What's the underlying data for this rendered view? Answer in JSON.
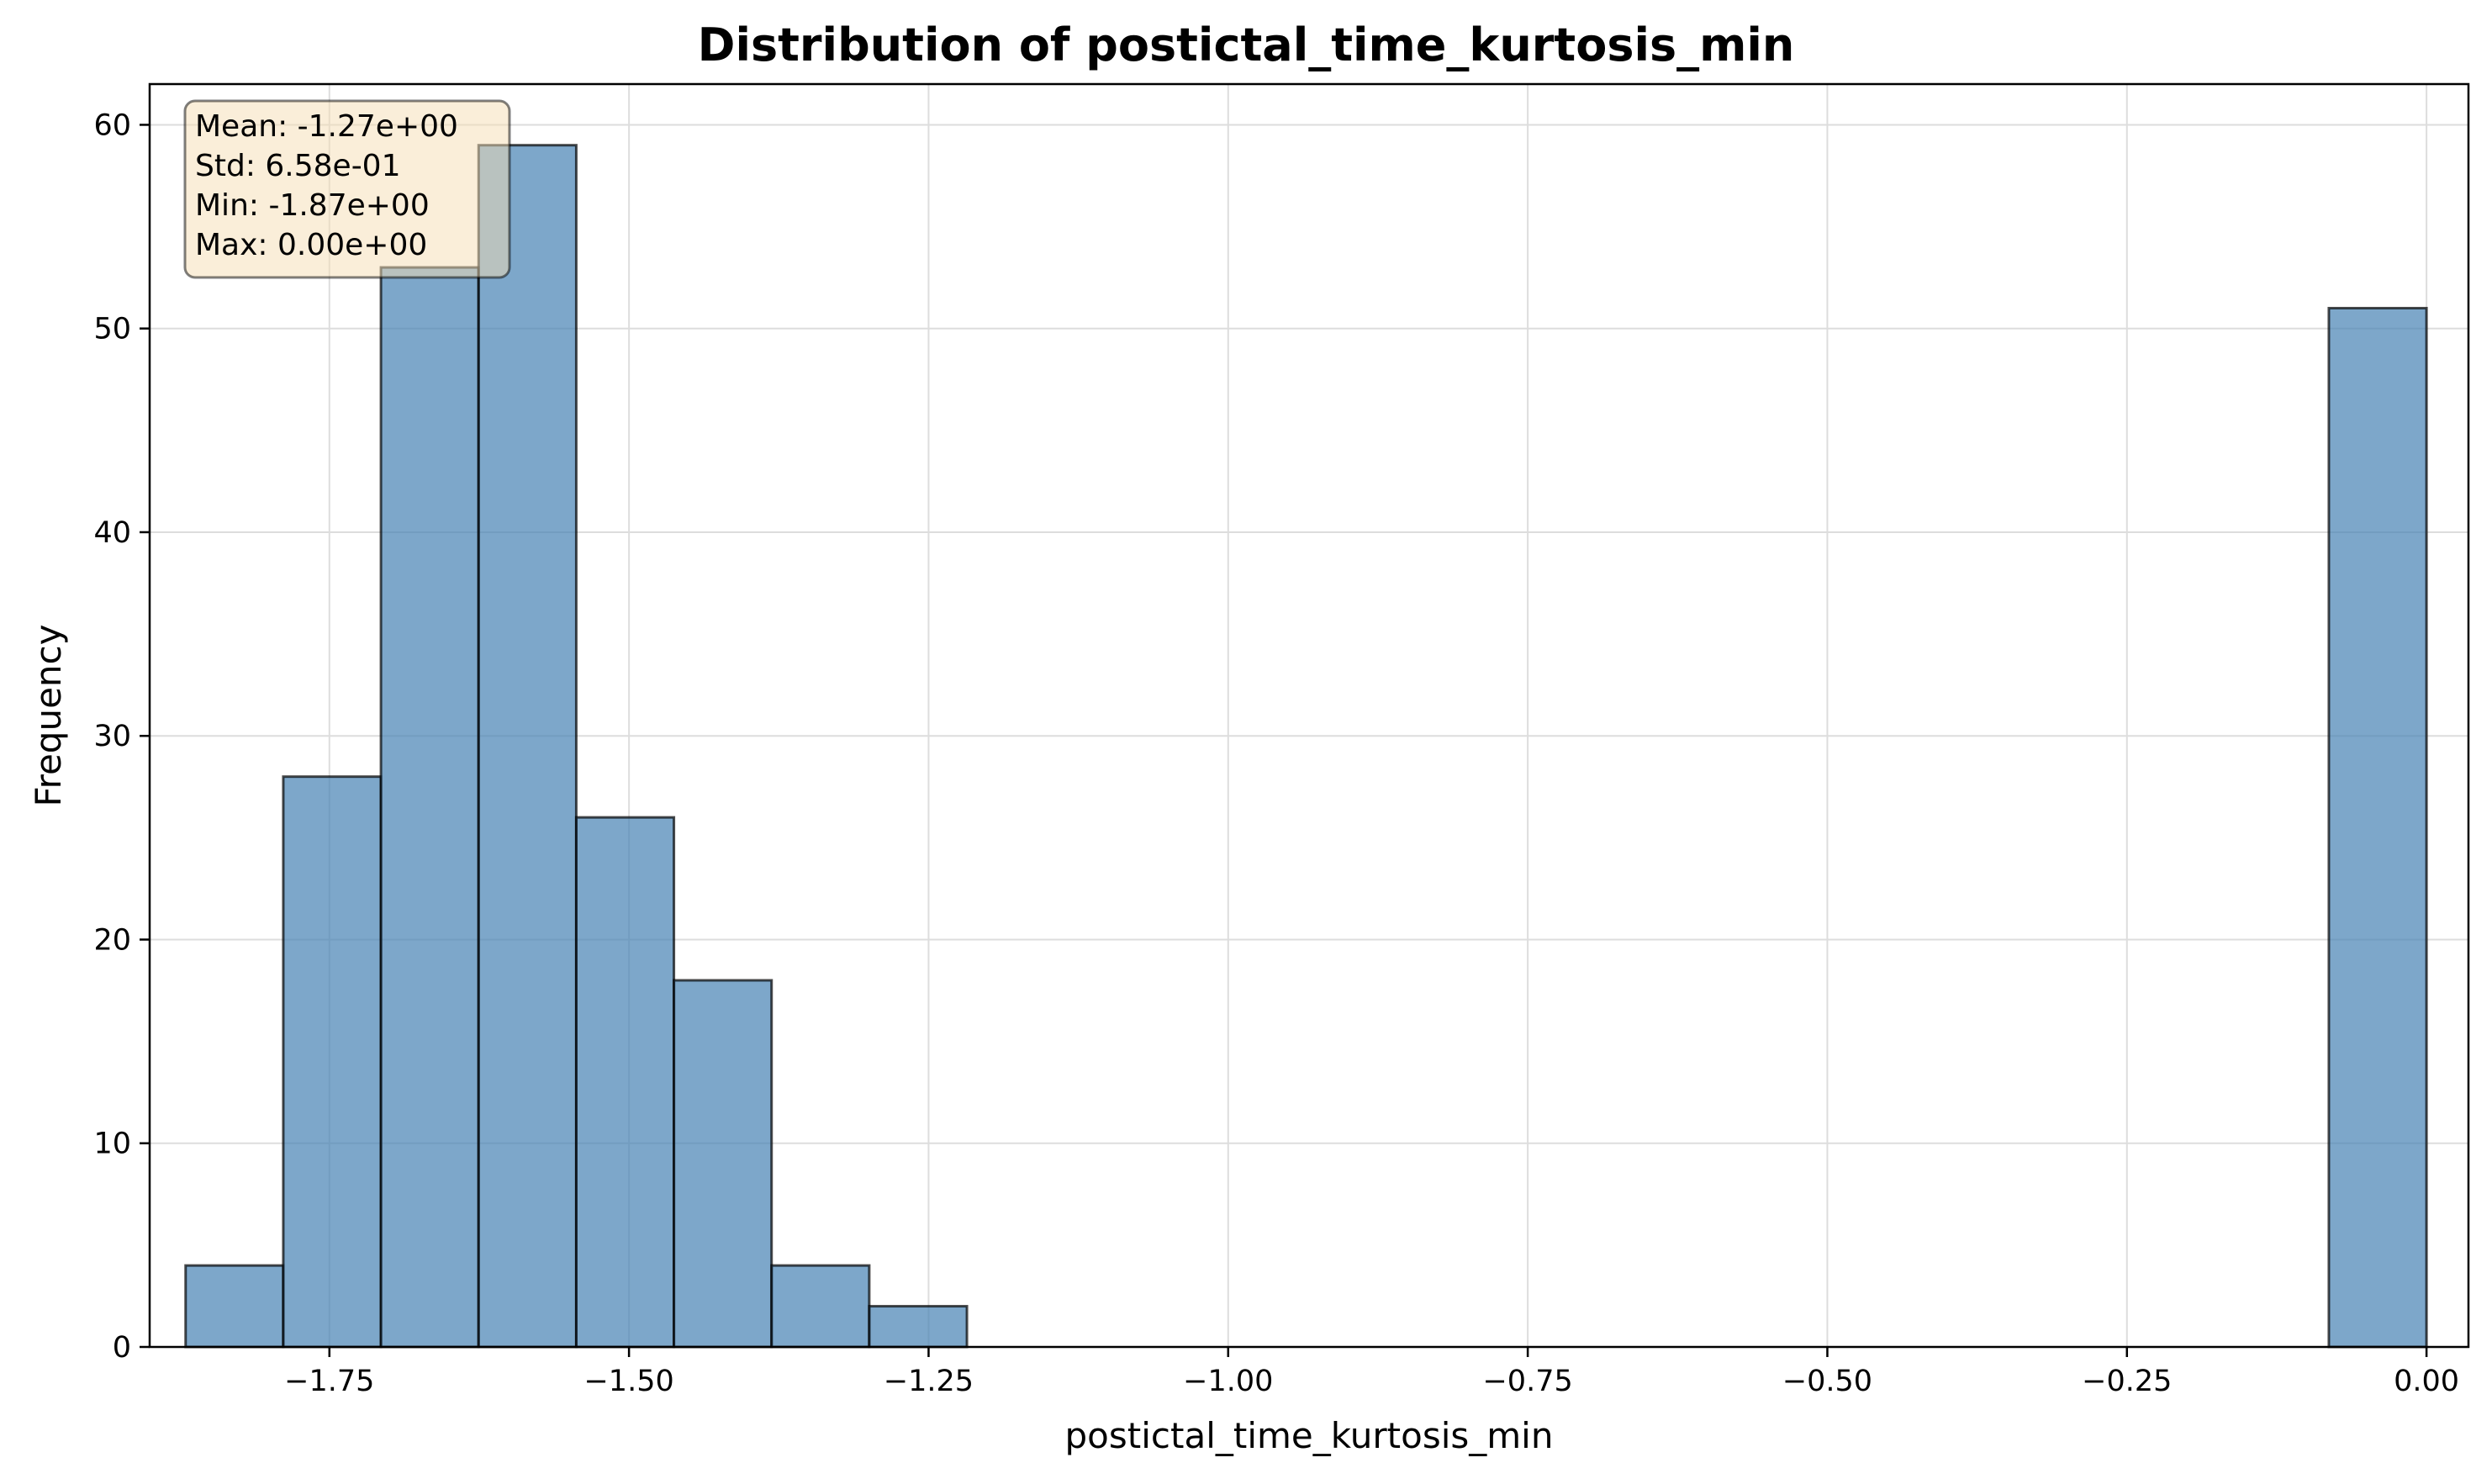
{
  "chart_data": {
    "type": "bar",
    "title": "Distribution of postictal_time_kurtosis_min",
    "xlabel": "postictal_time_kurtosis_min",
    "ylabel": "Frequency",
    "xlim": [
      -1.9,
      0.035
    ],
    "ylim": [
      0,
      62
    ],
    "xticks": [
      -1.75,
      -1.5,
      -1.25,
      -1.0,
      -0.75,
      -0.5,
      -0.25,
      0.0
    ],
    "xtick_labels": [
      "−1.75",
      "−1.50",
      "−1.25",
      "−1.00",
      "−0.75",
      "−0.50",
      "−0.25",
      "0.00"
    ],
    "yticks": [
      0,
      10,
      20,
      30,
      40,
      50,
      60
    ],
    "ytick_labels": [
      "0",
      "10",
      "20",
      "30",
      "40",
      "50",
      "60"
    ],
    "grid": true,
    "bins": [
      {
        "x0": -1.87,
        "x1": -1.7885,
        "count": 4
      },
      {
        "x0": -1.7885,
        "x1": -1.707,
        "count": 28
      },
      {
        "x0": -1.707,
        "x1": -1.6255,
        "count": 53
      },
      {
        "x0": -1.6255,
        "x1": -1.544,
        "count": 59
      },
      {
        "x0": -1.544,
        "x1": -1.4625,
        "count": 26
      },
      {
        "x0": -1.4625,
        "x1": -1.381,
        "count": 18
      },
      {
        "x0": -1.381,
        "x1": -1.2995,
        "count": 4
      },
      {
        "x0": -1.2995,
        "x1": -1.218,
        "count": 2
      },
      {
        "x0": -0.0815,
        "x1": 0.0,
        "count": 51
      }
    ],
    "stats_box": [
      "Mean: -1.27e+00",
      "Std: 6.58e-01",
      "Min: -1.87e+00",
      "Max: 0.00e+00"
    ],
    "colors": {
      "bar_fill": "#4682b4",
      "bar_edge": "#000000",
      "stats_box_fill": "#f5deb3",
      "grid": "#dddddd"
    }
  }
}
